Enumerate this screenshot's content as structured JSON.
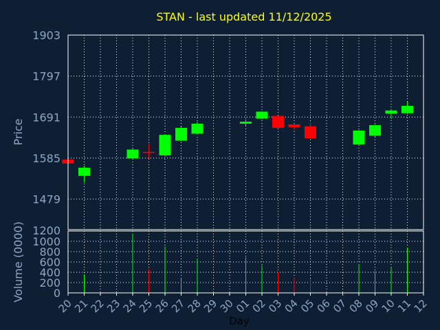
{
  "colors": {
    "background": "#0f1f33",
    "title": "#ffff00",
    "axis_text": "#8da7c6",
    "frame": "#ffffff",
    "grid": "#ffffff",
    "up": "#00ff00",
    "down": "#ff0000"
  },
  "chart_data": [
    {
      "type": "candlestick",
      "title": "STAN - last updated 11/12/2025",
      "ylabel": "Price",
      "ylim": [
        1400,
        1903
      ],
      "yticks": [
        1479,
        1585,
        1691,
        1797,
        1903
      ],
      "grid": true,
      "x_categories": [
        "20",
        "21",
        "22",
        "23",
        "24",
        "25",
        "26",
        "27",
        "28",
        "29",
        "30",
        "01",
        "02",
        "03",
        "04",
        "05",
        "06",
        "07",
        "08",
        "09",
        "10",
        "11",
        "12"
      ],
      "candles": [
        {
          "day": "20",
          "open": 1581,
          "high": 1581,
          "low": 1571,
          "close": 1571
        },
        {
          "day": "21",
          "open": 1539,
          "high": 1565,
          "low": 1522,
          "close": 1560
        },
        {
          "day": "24",
          "open": 1584,
          "high": 1609,
          "low": 1583,
          "close": 1607
        },
        {
          "day": "25",
          "open": 1601,
          "high": 1622,
          "low": 1583,
          "close": 1599
        },
        {
          "day": "26",
          "open": 1592,
          "high": 1647,
          "low": 1588,
          "close": 1645
        },
        {
          "day": "27",
          "open": 1630,
          "high": 1667,
          "low": 1628,
          "close": 1663
        },
        {
          "day": "28",
          "open": 1648,
          "high": 1679,
          "low": 1645,
          "close": 1674
        },
        {
          "day": "01",
          "open": 1674,
          "high": 1685,
          "low": 1668,
          "close": 1679
        },
        {
          "day": "02",
          "open": 1687,
          "high": 1706,
          "low": 1684,
          "close": 1705
        },
        {
          "day": "03",
          "open": 1694,
          "high": 1695,
          "low": 1662,
          "close": 1663
        },
        {
          "day": "04",
          "open": 1672,
          "high": 1672,
          "low": 1656,
          "close": 1665
        },
        {
          "day": "05",
          "open": 1667,
          "high": 1678,
          "low": 1634,
          "close": 1636
        },
        {
          "day": "08",
          "open": 1620,
          "high": 1658,
          "low": 1618,
          "close": 1656
        },
        {
          "day": "09",
          "open": 1643,
          "high": 1672,
          "low": 1640,
          "close": 1670
        },
        {
          "day": "10",
          "open": 1700,
          "high": 1712,
          "low": 1686,
          "close": 1708
        },
        {
          "day": "11",
          "open": 1701,
          "high": 1731,
          "low": 1700,
          "close": 1720
        }
      ]
    },
    {
      "type": "bar",
      "ylabel": "Volume (0000)",
      "xlabel": "Day",
      "ylim": [
        0,
        1200
      ],
      "yticks": [
        0,
        200,
        400,
        600,
        800,
        1000
      ],
      "ytick_labels": [
        "0",
        "200",
        "400",
        "600",
        "800",
        "1000"
      ],
      "top_label": "1200",
      "grid": true,
      "categories": [
        "20",
        "21",
        "24",
        "25",
        "26",
        "27",
        "28",
        "01",
        "02",
        "03",
        "04",
        "05",
        "08",
        "09",
        "10",
        "11"
      ],
      "values": [
        0,
        360,
        1150,
        470,
        900,
        290,
        670,
        690,
        530,
        400,
        290,
        280,
        560,
        420,
        500,
        880
      ],
      "directions": [
        "down",
        "up",
        "up",
        "down",
        "up",
        "up",
        "up",
        "up",
        "up",
        "down",
        "down",
        "down",
        "up",
        "up",
        "up",
        "up"
      ]
    }
  ]
}
